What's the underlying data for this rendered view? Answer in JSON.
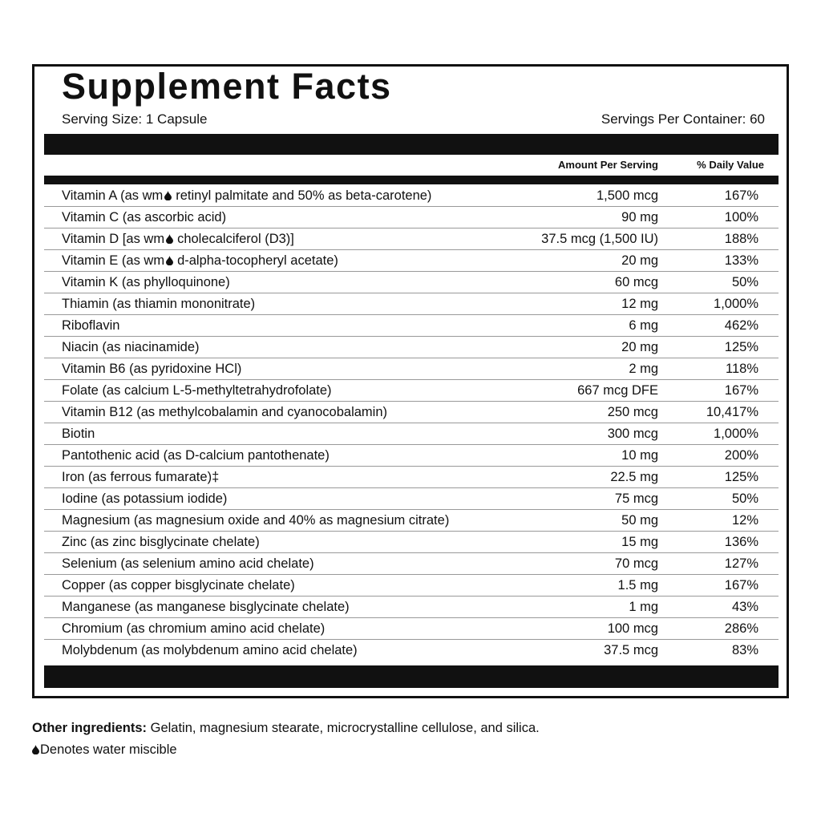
{
  "header": {
    "title": "Supplement Facts",
    "serving_size": "Serving Size: 1 Capsule",
    "servings_per_container": "Servings Per Container: 60"
  },
  "table": {
    "columns": [
      "Amount Per Serving",
      "% Daily Value"
    ],
    "rows": [
      {
        "name": [
          "Vitamin A (as wm",
          "retinyl palmitate and 50% as beta-carotene)"
        ],
        "amount": "1,500 mcg",
        "daily_value": "167%"
      },
      {
        "name": [
          "Vitamin C (as ascorbic acid)"
        ],
        "amount": "90 mg",
        "daily_value": "100%"
      },
      {
        "name": [
          "Vitamin D [as wm",
          "cholecalciferol (D3)]"
        ],
        "amount": "37.5 mcg (1,500 IU)",
        "daily_value": "188%"
      },
      {
        "name": [
          "Vitamin E (as wm",
          "d-alpha-tocopheryl acetate)"
        ],
        "amount": "20 mg",
        "daily_value": "133%"
      },
      {
        "name": [
          "Vitamin K (as phylloquinone)"
        ],
        "amount": "60 mcg",
        "daily_value": "50%"
      },
      {
        "name": [
          "Thiamin (as thiamin mononitrate)"
        ],
        "amount": "12 mg",
        "daily_value": "1,000%"
      },
      {
        "name": [
          "Riboflavin"
        ],
        "amount": "6 mg",
        "daily_value": "462%"
      },
      {
        "name": [
          "Niacin (as niacinamide)"
        ],
        "amount": "20 mg",
        "daily_value": "125%"
      },
      {
        "name": [
          "Vitamin B6 (as pyridoxine HCl)"
        ],
        "amount": "2 mg",
        "daily_value": "118%"
      },
      {
        "name": [
          "Folate (as calcium L-5-methyltetrahydrofolate)"
        ],
        "amount": "667 mcg DFE",
        "daily_value": "167%"
      },
      {
        "name": [
          "Vitamin B12 (as methylcobalamin and cyanocobalamin)"
        ],
        "amount": "250 mcg",
        "daily_value": "10,417%"
      },
      {
        "name": [
          "Biotin"
        ],
        "amount": "300 mcg",
        "daily_value": "1,000%"
      },
      {
        "name": [
          "Pantothenic acid (as D-calcium pantothenate)"
        ],
        "amount": "10 mg",
        "daily_value": "200%"
      },
      {
        "name": [
          "Iron (as ferrous fumarate)‡"
        ],
        "amount": "22.5 mg",
        "daily_value": "125%"
      },
      {
        "name": [
          "Iodine (as potassium iodide)"
        ],
        "amount": "75 mcg",
        "daily_value": "50%"
      },
      {
        "name": [
          "Magnesium (as magnesium oxide and 40% as magnesium citrate)"
        ],
        "amount": "50 mg",
        "daily_value": "12%"
      },
      {
        "name": [
          "Zinc (as zinc bisglycinate chelate)"
        ],
        "amount": "15 mg",
        "daily_value": "136%"
      },
      {
        "name": [
          "Selenium (as selenium amino acid chelate)"
        ],
        "amount": "70 mcg",
        "daily_value": "127%"
      },
      {
        "name": [
          "Copper (as copper bisglycinate chelate)"
        ],
        "amount": "1.5 mg",
        "daily_value": "167%"
      },
      {
        "name": [
          "Manganese (as manganese bisglycinate chelate)"
        ],
        "amount": "1 mg",
        "daily_value": "43%"
      },
      {
        "name": [
          "Chromium (as chromium amino acid chelate)"
        ],
        "amount": "100 mcg",
        "daily_value": "286%"
      },
      {
        "name": [
          "Molybdenum (as molybdenum amino acid chelate)"
        ],
        "amount": "37.5 mcg",
        "daily_value": "83%"
      }
    ]
  },
  "footer": {
    "other_ingredients_label": "Other ingredients:",
    "other_ingredients": "Gelatin, magnesium stearate, microcrystalline cellulose, and silica.",
    "note": "Denotes water miscible"
  }
}
